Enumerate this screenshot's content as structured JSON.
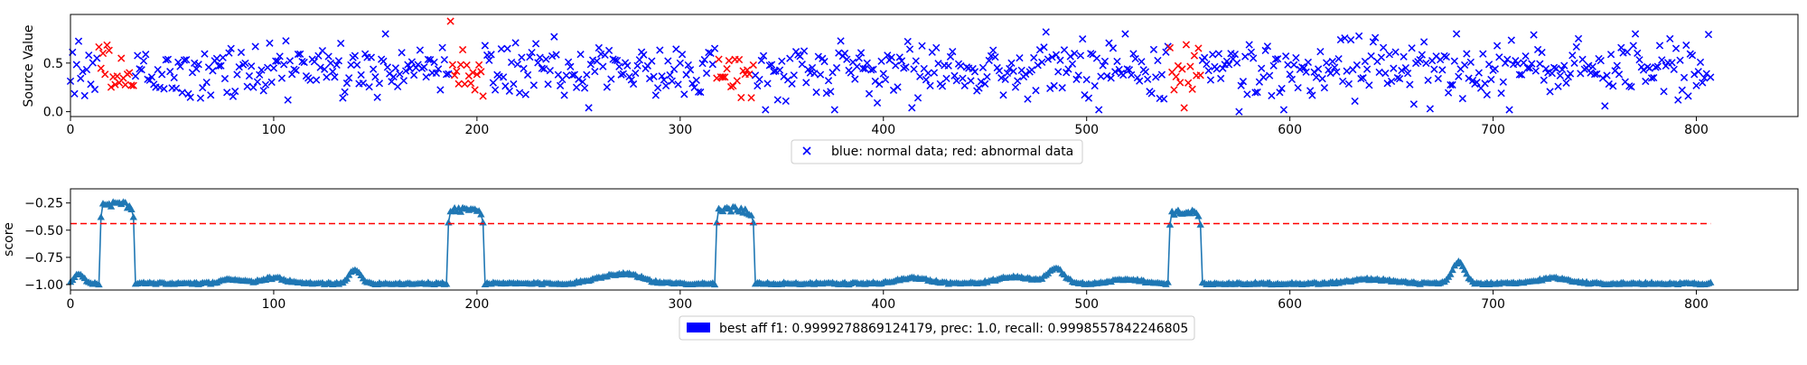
{
  "figure": {
    "colors": {
      "normal": "#0000ff",
      "abnormal": "#ff0000",
      "score_line": "#1f77b4",
      "threshold": "#ff0000",
      "legend_patch": "#0000ff"
    }
  },
  "chart_data": [
    {
      "type": "scatter",
      "title": "",
      "xlabel": "",
      "ylabel": "Source Value",
      "xlim": [
        0,
        850
      ],
      "ylim": [
        -0.05,
        1.0
      ],
      "xticks": [
        0,
        100,
        200,
        300,
        400,
        500,
        600,
        700,
        800
      ],
      "yticks": [
        0.0,
        0.5
      ],
      "ytick_labels": [
        "0.0",
        "0.5"
      ],
      "marker": "x",
      "legend": {
        "label": "blue: normal data; red: abnormal data",
        "placement": "lower-center-outside"
      },
      "n_points": 808,
      "seed": 13,
      "y_center": 0.43,
      "y_spread": 0.15,
      "anomaly_segments": [
        [
          14,
          31
        ],
        [
          187,
          203
        ],
        [
          318,
          336
        ],
        [
          541,
          556
        ]
      ],
      "highlight_points": [
        {
          "x": 187,
          "y": 0.93
        },
        {
          "x": 575,
          "y": 0.0
        },
        {
          "x": 480,
          "y": 0.82
        },
        {
          "x": 720,
          "y": 0.79
        },
        {
          "x": 255,
          "y": 0.04
        },
        {
          "x": 669,
          "y": 0.03
        },
        {
          "x": 414,
          "y": 0.04
        }
      ]
    },
    {
      "type": "line",
      "title": "",
      "xlabel": "",
      "ylabel": "score",
      "xlim": [
        0,
        850
      ],
      "ylim": [
        -1.05,
        -0.12
      ],
      "xticks": [
        0,
        100,
        200,
        300,
        400,
        500,
        600,
        700,
        800
      ],
      "yticks": [
        -1.0,
        -0.75,
        -0.5,
        -0.25
      ],
      "ytick_labels": [
        "−1.00",
        "−0.75",
        "−0.50",
        "−0.25"
      ],
      "marker": "^",
      "threshold": -0.44,
      "threshold_x": [
        0,
        807
      ],
      "baseline": -1.0,
      "high_segments": [
        {
          "start": 15,
          "end": 31,
          "level": -0.26
        },
        {
          "start": 186,
          "end": 203,
          "level": -0.31
        },
        {
          "start": 318,
          "end": 336,
          "level": -0.31
        },
        {
          "start": 541,
          "end": 556,
          "level": -0.33
        }
      ],
      "bumps": [
        {
          "center": 4,
          "width": 5,
          "height": 0.08
        },
        {
          "center": 80,
          "width": 10,
          "height": 0.04
        },
        {
          "center": 100,
          "width": 12,
          "height": 0.05
        },
        {
          "center": 140,
          "width": 6,
          "height": 0.12
        },
        {
          "center": 262,
          "width": 14,
          "height": 0.05
        },
        {
          "center": 275,
          "width": 14,
          "height": 0.08
        },
        {
          "center": 415,
          "width": 16,
          "height": 0.05
        },
        {
          "center": 465,
          "width": 18,
          "height": 0.06
        },
        {
          "center": 485,
          "width": 8,
          "height": 0.13
        },
        {
          "center": 520,
          "width": 14,
          "height": 0.04
        },
        {
          "center": 640,
          "width": 20,
          "height": 0.04
        },
        {
          "center": 683,
          "width": 6,
          "height": 0.2
        },
        {
          "center": 730,
          "width": 16,
          "height": 0.05
        }
      ],
      "legend": {
        "label": "best aff f1: 0.9999278869124179, prec: 1.0, recall: 0.9998557842246805",
        "placement": "lower-center-outside"
      }
    }
  ]
}
